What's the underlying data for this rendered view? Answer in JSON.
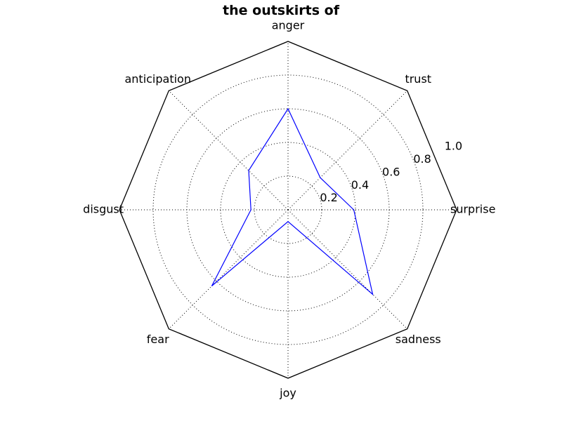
{
  "chart_data": {
    "type": "radar",
    "title": "the outskirts of",
    "categories": [
      "surprise",
      "trust",
      "anger",
      "anticipation",
      "disgust",
      "fear",
      "joy",
      "sadness"
    ],
    "series": [
      {
        "values": [
          0.39,
          0.27,
          0.6,
          0.33,
          0.22,
          0.64,
          0.07,
          0.71
        ]
      }
    ],
    "rlim": [
      0,
      1.0
    ],
    "r_ticks": [
      0.2,
      0.4,
      0.6,
      0.8,
      1.0
    ],
    "r_tick_labels": [
      "0.2",
      "0.4",
      "0.6",
      "0.8",
      "1.0"
    ],
    "grid": true,
    "colors": {
      "series": "#0000ff",
      "frame": "#000000",
      "grid": "#000000"
    }
  }
}
